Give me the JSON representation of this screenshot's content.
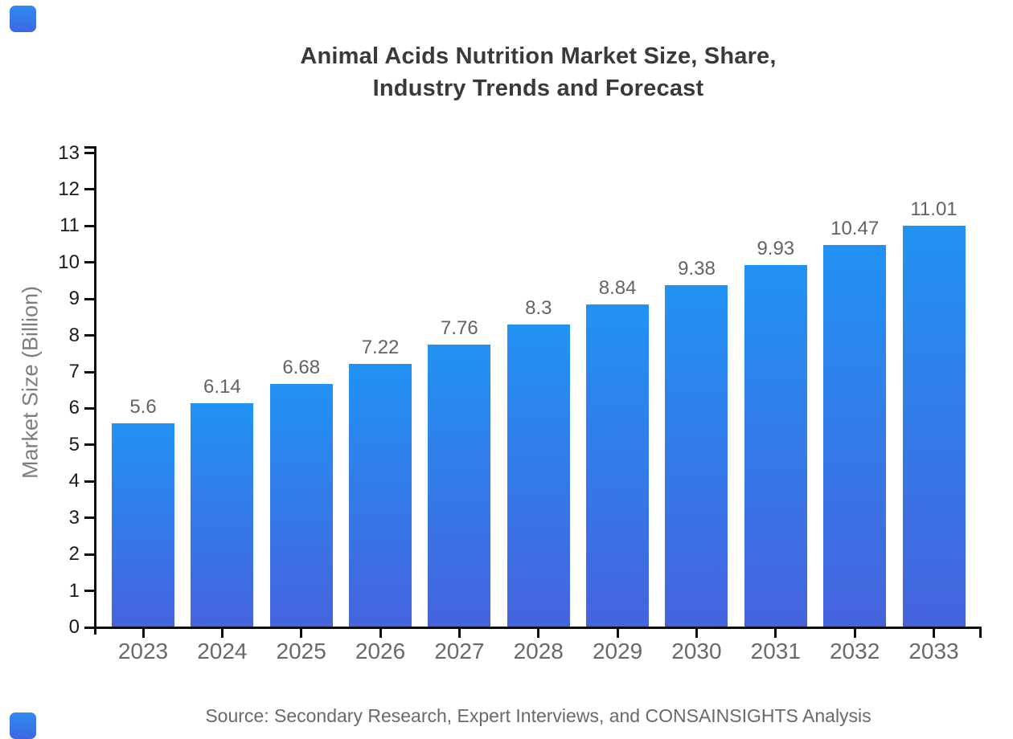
{
  "logo": {
    "top_left": "brand-mark",
    "bottom_left": "brand-mark",
    "color_top": "#2f8bf2",
    "color_bottom": "#3f66e0"
  },
  "chart_data": {
    "type": "bar",
    "title_lines": [
      "Animal Acids Nutrition Market Size, Share,",
      "Industry Trends and Forecast"
    ],
    "categories": [
      "2023",
      "2024",
      "2025",
      "2026",
      "2027",
      "2028",
      "2029",
      "2030",
      "2031",
      "2032",
      "2033"
    ],
    "values": [
      5.6,
      6.14,
      6.68,
      7.22,
      7.76,
      8.3,
      8.84,
      9.38,
      9.93,
      10.47,
      11.01
    ],
    "value_labels": [
      "5.6",
      "6.14",
      "6.68",
      "7.22",
      "7.76",
      "8.3",
      "8.84",
      "9.38",
      "9.93",
      "10.47",
      "11.01"
    ],
    "xlabel": "",
    "ylabel": "Market Size (Billion)",
    "ylim": [
      0,
      13
    ],
    "ytick_step": 1,
    "yticks": [
      0,
      1,
      2,
      3,
      4,
      5,
      6,
      7,
      8,
      9,
      10,
      11,
      12,
      13
    ],
    "grid": false,
    "legend": false,
    "bar_gradient_top": "#2192f3",
    "bar_gradient_bottom": "#4663de",
    "axis_color": "#0d0d0d",
    "source": "Source: Secondary Research, Expert Interviews, and CONSAINSIGHTS Analysis"
  }
}
